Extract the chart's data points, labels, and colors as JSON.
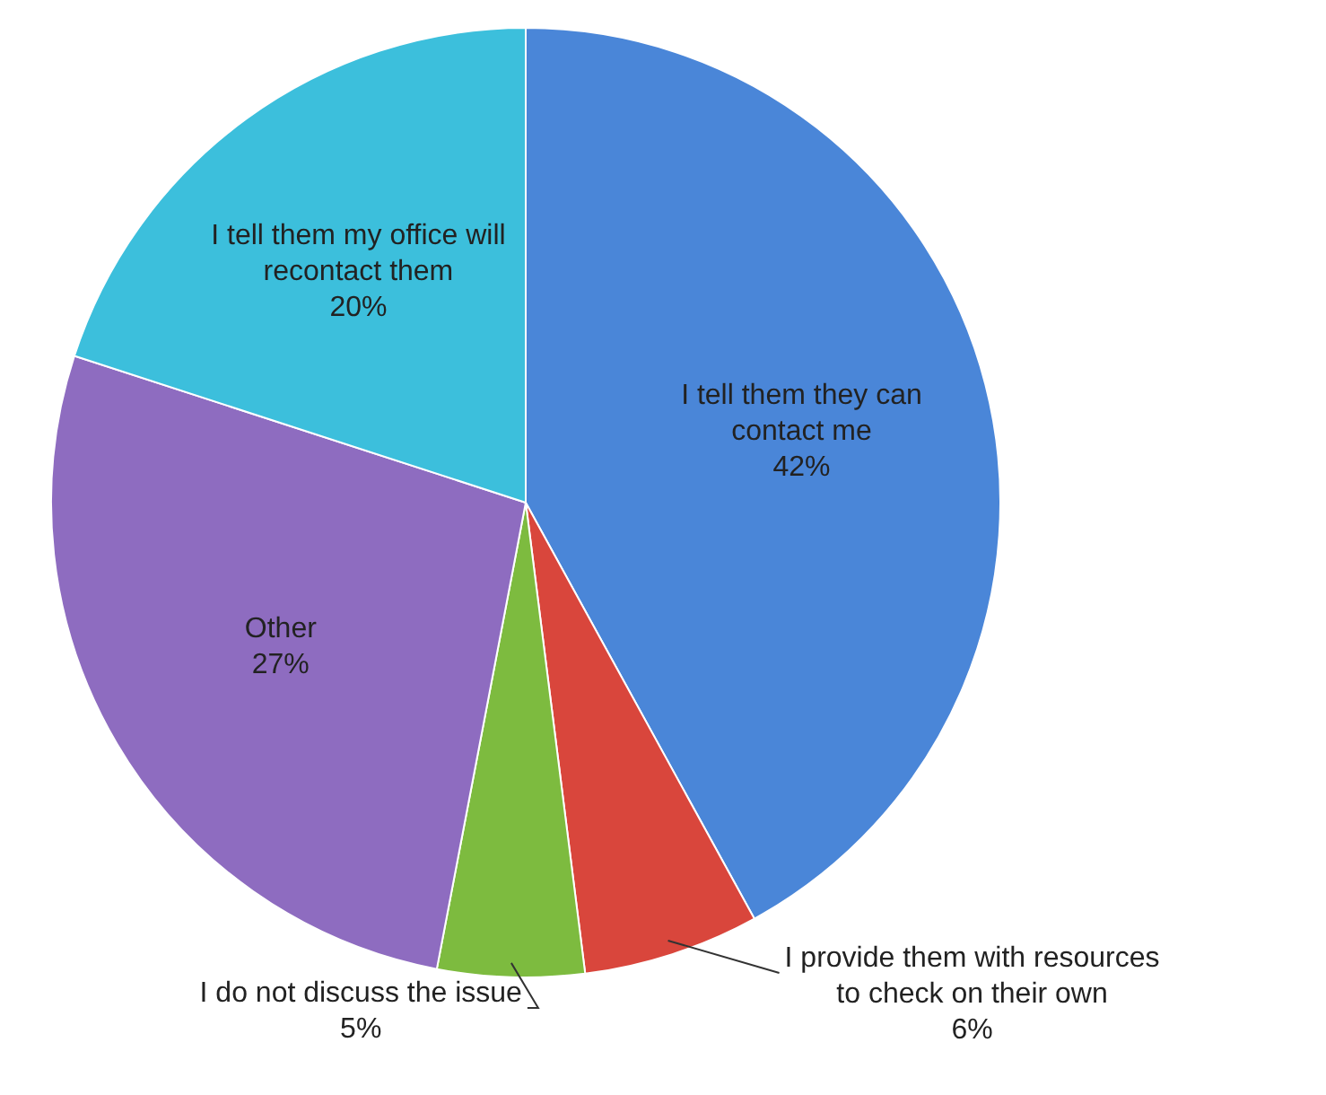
{
  "chart_data": {
    "type": "pie",
    "categories": [
      "I tell them they can contact me",
      "I provide them with resources to check on their own",
      "I do not discuss the issue",
      "Other",
      "I tell them my office will recontact them"
    ],
    "values": [
      42,
      6,
      5,
      27,
      20
    ],
    "colors": [
      "#4a86d8",
      "#d9463c",
      "#7dbb3f",
      "#8e6cc0",
      "#3cbfdc"
    ],
    "value_labels": [
      "42%",
      "6%",
      "5%",
      "27%",
      "20%"
    ],
    "legend": false
  }
}
